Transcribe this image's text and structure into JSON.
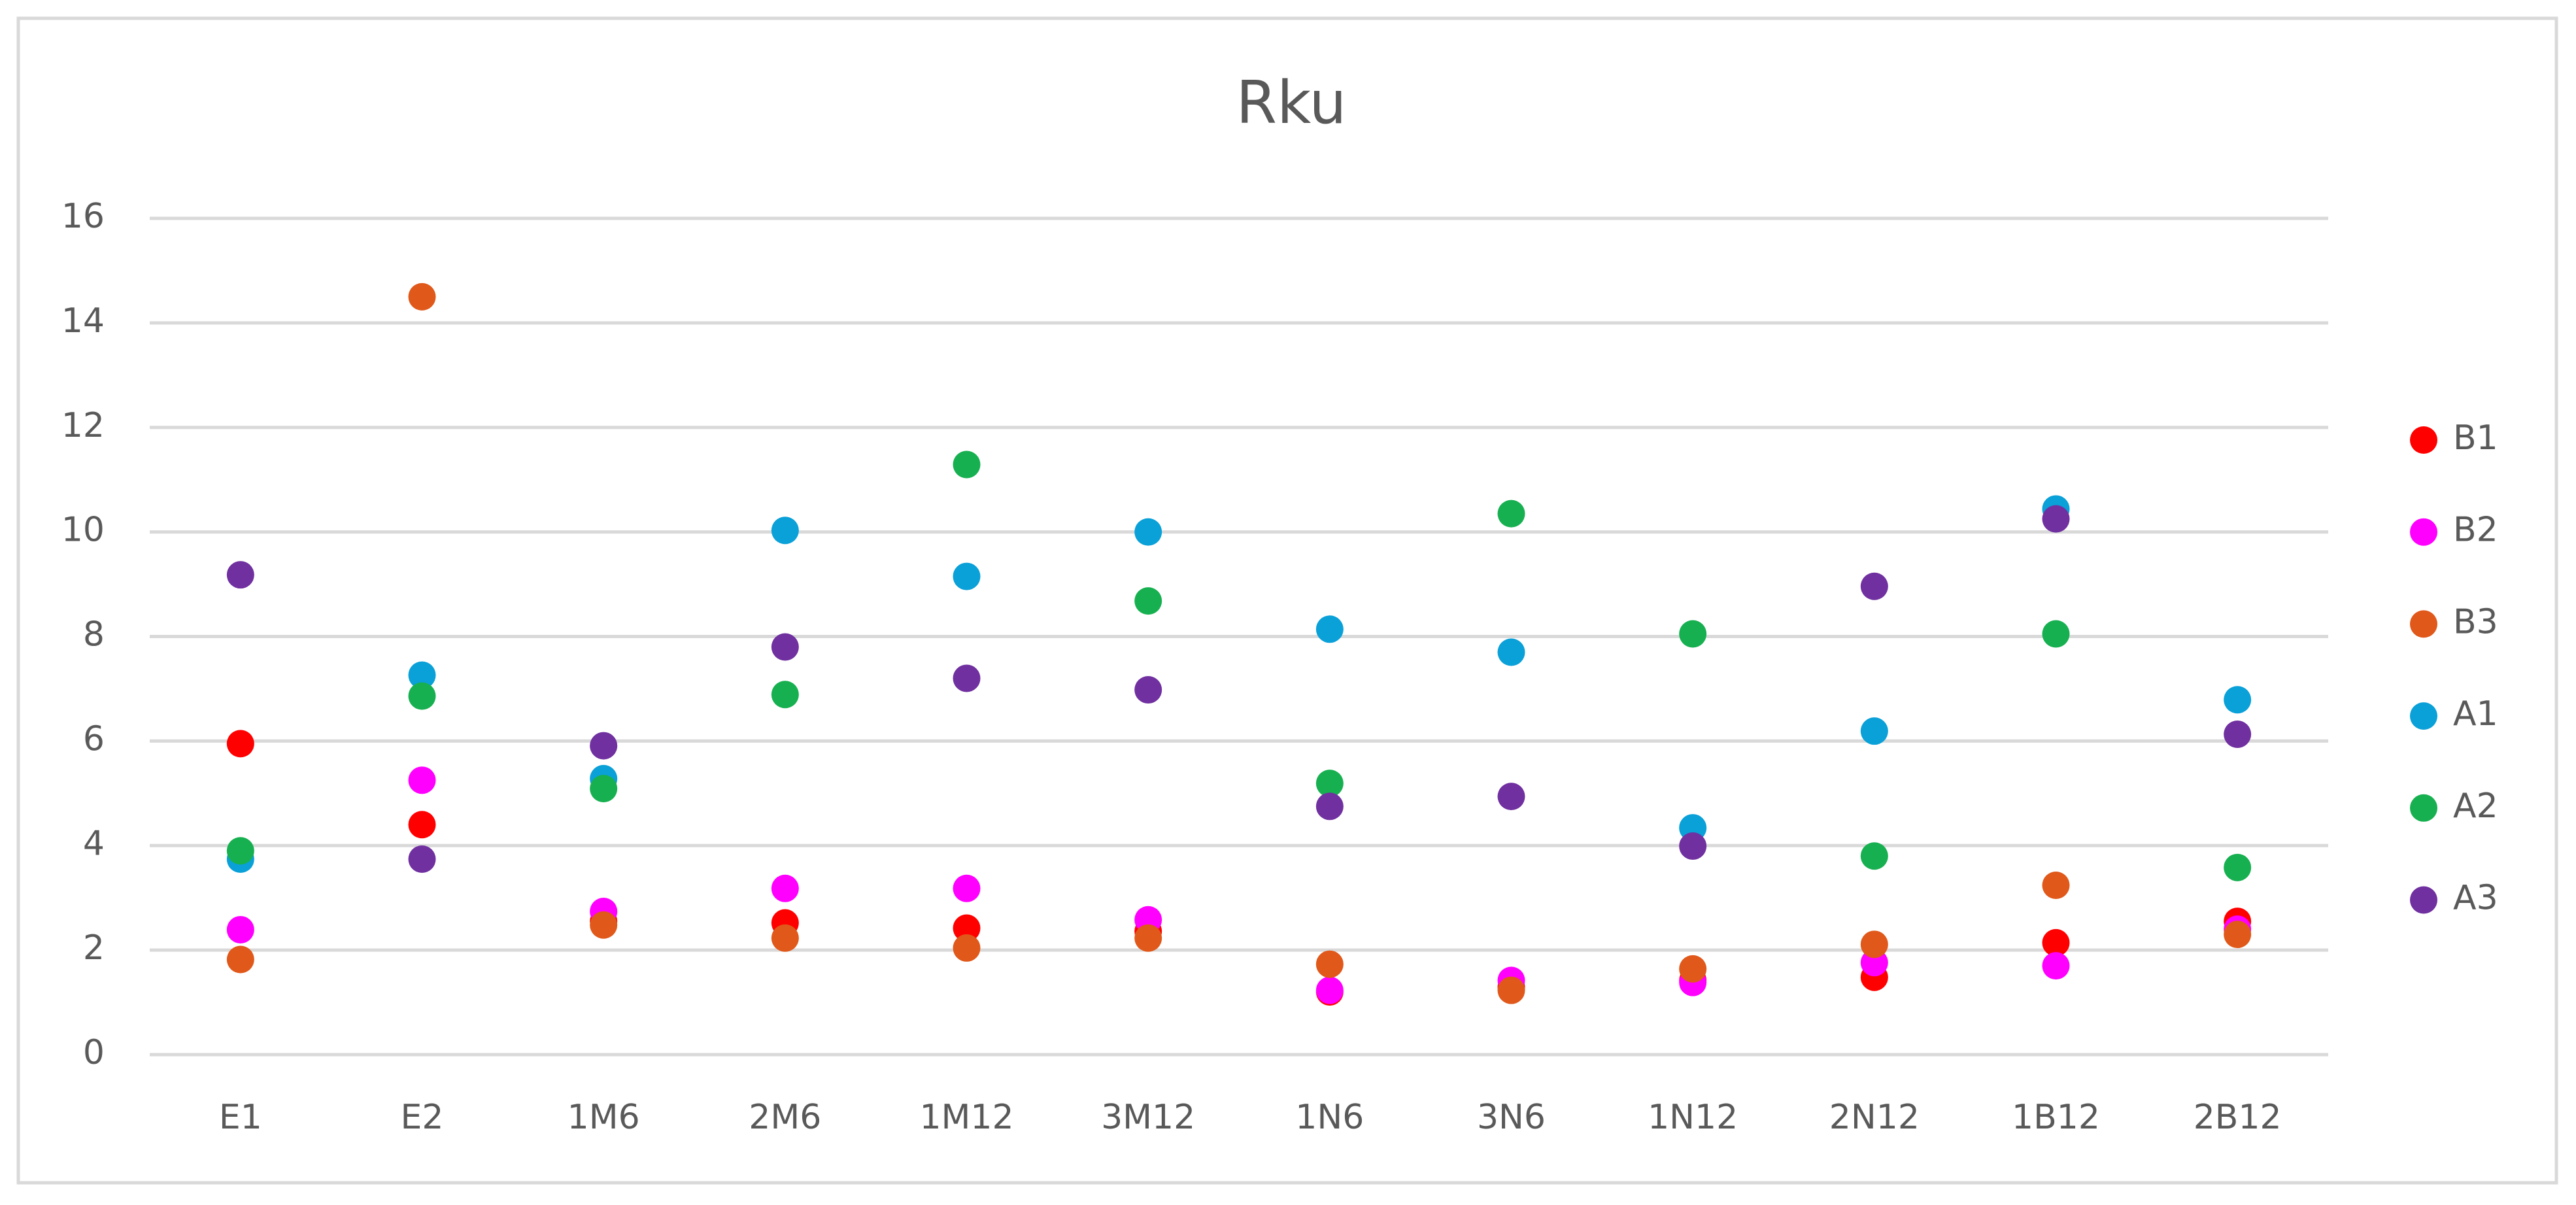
{
  "chart_data": {
    "type": "scatter",
    "title": "Rku",
    "categories": [
      "E1",
      "E2",
      "1M6",
      "2M6",
      "1M12",
      "3M12",
      "1N6",
      "3N6",
      "1N12",
      "2N12",
      "1B12",
      "2B12"
    ],
    "series": [
      {
        "name": "B1",
        "color": "#ff0000",
        "values": [
          5.95,
          4.4,
          2.55,
          2.52,
          2.42,
          2.36,
          1.2,
          1.29,
          1.42,
          1.48,
          2.14,
          2.55
        ]
      },
      {
        "name": "B2",
        "color": "#ff00ff",
        "values": [
          2.39,
          5.25,
          2.74,
          3.18,
          3.18,
          2.58,
          1.23,
          1.42,
          1.38,
          1.76,
          1.7,
          2.4
        ]
      },
      {
        "name": "B3",
        "color": "#e0581a",
        "values": [
          1.82,
          14.5,
          2.48,
          2.23,
          2.04,
          2.23,
          1.73,
          1.23,
          1.64,
          2.11,
          3.24,
          2.3
        ]
      },
      {
        "name": "A1",
        "color": "#0aa0d8",
        "values": [
          3.74,
          7.26,
          5.28,
          10.03,
          9.15,
          10.0,
          8.14,
          7.7,
          4.34,
          6.19,
          10.44,
          6.79
        ]
      },
      {
        "name": "A2",
        "color": "#17b050",
        "values": [
          3.9,
          6.86,
          5.09,
          6.89,
          11.29,
          8.68,
          5.19,
          10.35,
          8.05,
          3.8,
          8.05,
          3.58
        ]
      },
      {
        "name": "A3",
        "color": "#7030a0",
        "values": [
          9.18,
          3.74,
          5.91,
          7.8,
          7.2,
          6.98,
          4.75,
          4.94,
          3.99,
          8.96,
          10.25,
          6.13
        ]
      }
    ],
    "ylim": [
      0,
      16
    ],
    "yticks": [
      0,
      2,
      4,
      6,
      8,
      10,
      12,
      14,
      16
    ],
    "grid": true,
    "legend": "right"
  }
}
